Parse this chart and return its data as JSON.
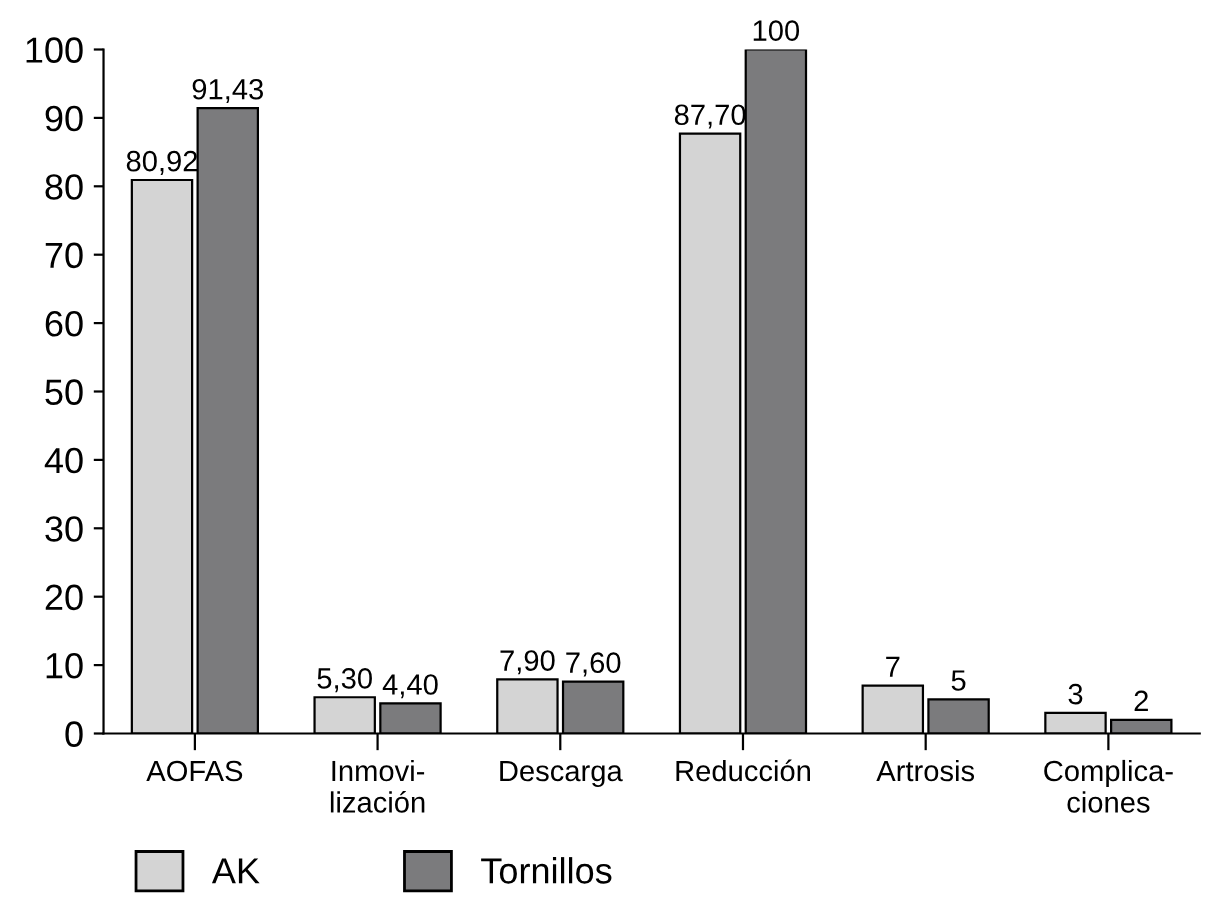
{
  "chart_data": {
    "type": "bar",
    "categories": [
      "AOFAS",
      "Inmovi-\nlización",
      "Descarga",
      "Reducción",
      "Artrosis",
      "Complica-\nciones"
    ],
    "series": [
      {
        "name": "AK",
        "color": "#d4d4d4",
        "values": [
          80.92,
          5.3,
          7.9,
          87.7,
          7,
          3
        ],
        "value_labels": [
          "80,92",
          "5,30",
          "7,90",
          "87,70",
          "7",
          "3"
        ]
      },
      {
        "name": "Tornillos",
        "color": "#7b7b7d",
        "values": [
          91.43,
          4.4,
          7.6,
          100,
          5,
          2
        ],
        "value_labels": [
          "91,43",
          "4,40",
          "7,60",
          "100",
          "5",
          "2"
        ]
      }
    ],
    "ylim": [
      0,
      100
    ],
    "yticks": [
      0,
      10,
      20,
      30,
      40,
      50,
      60,
      70,
      80,
      90,
      100
    ],
    "grid": false,
    "legend": "bottom"
  }
}
